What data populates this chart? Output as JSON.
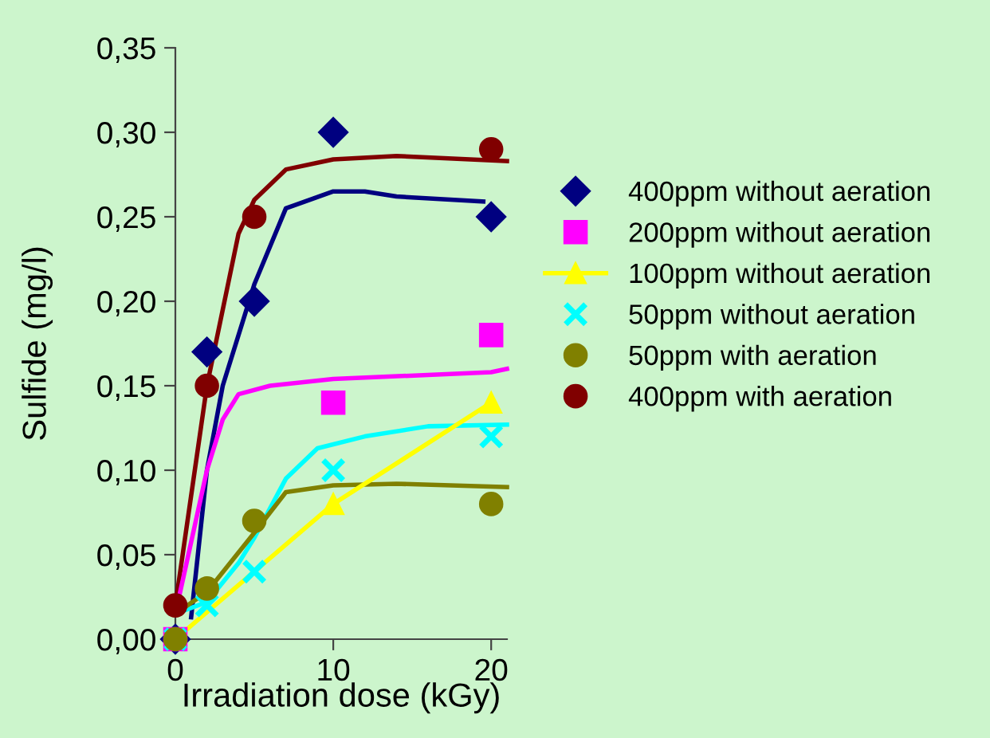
{
  "chart_data": {
    "type": "scatter",
    "xlabel": "Irradiation dose (kGy)",
    "ylabel": "Sulfide (mg/l)",
    "xlim": [
      0,
      21
    ],
    "xticks": [
      0,
      10,
      20
    ],
    "ylim": [
      0,
      0.35
    ],
    "yticks": [
      {
        "value": 0,
        "label": "0,00"
      },
      {
        "value": 0.05,
        "label": "0,05"
      },
      {
        "value": 0.1,
        "label": "0,10"
      },
      {
        "value": 0.15,
        "label": "0,15"
      },
      {
        "value": 0.2,
        "label": "0,20"
      },
      {
        "value": 0.25,
        "label": "0,25"
      },
      {
        "value": 0.3,
        "label": "0,30"
      },
      {
        "value": 0.35,
        "label": "0,35"
      }
    ],
    "grid": false,
    "legend": "right",
    "series": [
      {
        "type": "line",
        "color": "#800000",
        "x": [
          0,
          2,
          4,
          5,
          7,
          10,
          14,
          21
        ],
        "values": [
          0.02,
          0.15,
          0.24,
          0.26,
          0.278,
          0.284,
          0.286,
          0.283
        ]
      },
      {
        "type": "line",
        "color": "#000080",
        "x": [
          1,
          2,
          3,
          5,
          7,
          10,
          12,
          14,
          19.5
        ],
        "values": [
          0.013,
          0.1,
          0.15,
          0.21,
          0.255,
          0.265,
          0.265,
          0.262,
          0.259
        ]
      },
      {
        "type": "line",
        "color": "#ff00ff",
        "x": [
          0,
          2,
          3,
          4,
          6,
          10,
          20,
          21
        ],
        "values": [
          0.015,
          0.1,
          0.13,
          0.145,
          0.15,
          0.154,
          0.158,
          0.16
        ]
      },
      {
        "type": "line",
        "color": "#00ffff",
        "x": [
          0,
          2,
          4,
          5,
          7,
          9,
          12,
          16,
          21
        ],
        "values": [
          0.015,
          0.022,
          0.045,
          0.06,
          0.095,
          0.113,
          0.12,
          0.126,
          0.127
        ]
      },
      {
        "type": "line",
        "color": "#808000",
        "x": [
          0,
          2,
          5,
          7,
          10,
          14,
          21
        ],
        "values": [
          0.015,
          0.028,
          0.063,
          0.087,
          0.091,
          0.092,
          0.09
        ]
      },
      {
        "name": "400ppm without aeration",
        "marker": "diamond",
        "color": "#000080",
        "x": [
          0,
          2,
          5,
          10,
          20
        ],
        "values": [
          0,
          0.17,
          0.2,
          0.3,
          0.25
        ]
      },
      {
        "name": "200ppm without aeration",
        "marker": "square",
        "color": "#ff00ff",
        "x": [
          0,
          10,
          20
        ],
        "values": [
          0,
          0.14,
          0.18
        ]
      },
      {
        "name": "100ppm without aeration",
        "type": "line",
        "marker": "triangle",
        "color": "#ffff00",
        "x": [
          0,
          10,
          20
        ],
        "values": [
          0,
          0.08,
          0.14
        ]
      },
      {
        "name": "50ppm without aeration",
        "marker": "cross",
        "color": "#00ffff",
        "x": [
          0,
          2,
          5,
          10,
          20
        ],
        "values": [
          0,
          0.02,
          0.04,
          0.1,
          0.12
        ]
      },
      {
        "name": "50ppm with aeration",
        "marker": "circle",
        "color": "#808000",
        "x": [
          0,
          2,
          5,
          20
        ],
        "values": [
          0,
          0.03,
          0.07,
          0.08
        ]
      },
      {
        "name": "400ppm with aeration",
        "marker": "circle",
        "color": "#800000",
        "x": [
          0,
          2,
          5,
          20
        ],
        "values": [
          0.02,
          0.15,
          0.25,
          0.29
        ]
      }
    ]
  }
}
